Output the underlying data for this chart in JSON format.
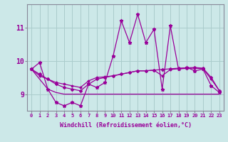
{
  "xlabel": "Windchill (Refroidissement éolien,°C)",
  "background_color": "#cce8e8",
  "line_color": "#990099",
  "grid_color": "#aacccc",
  "x_values": [
    0,
    1,
    2,
    3,
    4,
    5,
    6,
    7,
    8,
    9,
    10,
    11,
    12,
    13,
    14,
    15,
    16,
    17,
    18,
    19,
    20,
    21,
    22,
    23
  ],
  "series1": [
    9.75,
    9.95,
    9.15,
    8.75,
    8.65,
    8.75,
    8.65,
    9.3,
    9.2,
    9.35,
    10.15,
    11.2,
    10.55,
    11.4,
    10.55,
    10.95,
    9.15,
    11.05,
    9.75,
    9.8,
    9.7,
    9.75,
    9.25,
    9.05
  ],
  "series2": [
    9.75,
    9.6,
    9.45,
    9.3,
    9.2,
    9.15,
    9.1,
    9.3,
    9.45,
    9.5,
    9.55,
    9.6,
    9.65,
    9.7,
    9.7,
    9.72,
    9.74,
    9.76,
    9.78,
    9.79,
    9.8,
    9.78,
    9.5,
    9.1
  ],
  "series3": [
    9.75,
    9.45,
    9.15,
    9.05,
    9.0,
    9.0,
    9.0,
    9.0,
    9.0,
    9.0,
    9.0,
    9.0,
    9.0,
    9.0,
    9.0,
    9.0,
    9.0,
    9.0,
    9.0,
    9.0,
    9.0,
    9.0,
    9.0,
    9.0
  ],
  "series4": [
    9.75,
    9.55,
    9.45,
    9.35,
    9.3,
    9.25,
    9.2,
    9.4,
    9.5,
    9.52,
    9.55,
    9.6,
    9.65,
    9.7,
    9.7,
    9.72,
    9.55,
    9.74,
    9.76,
    9.77,
    9.78,
    9.76,
    9.45,
    9.1
  ],
  "ylim": [
    8.5,
    11.7
  ],
  "yticks": [
    9,
    10,
    11
  ],
  "xlim": [
    -0.5,
    23.5
  ]
}
